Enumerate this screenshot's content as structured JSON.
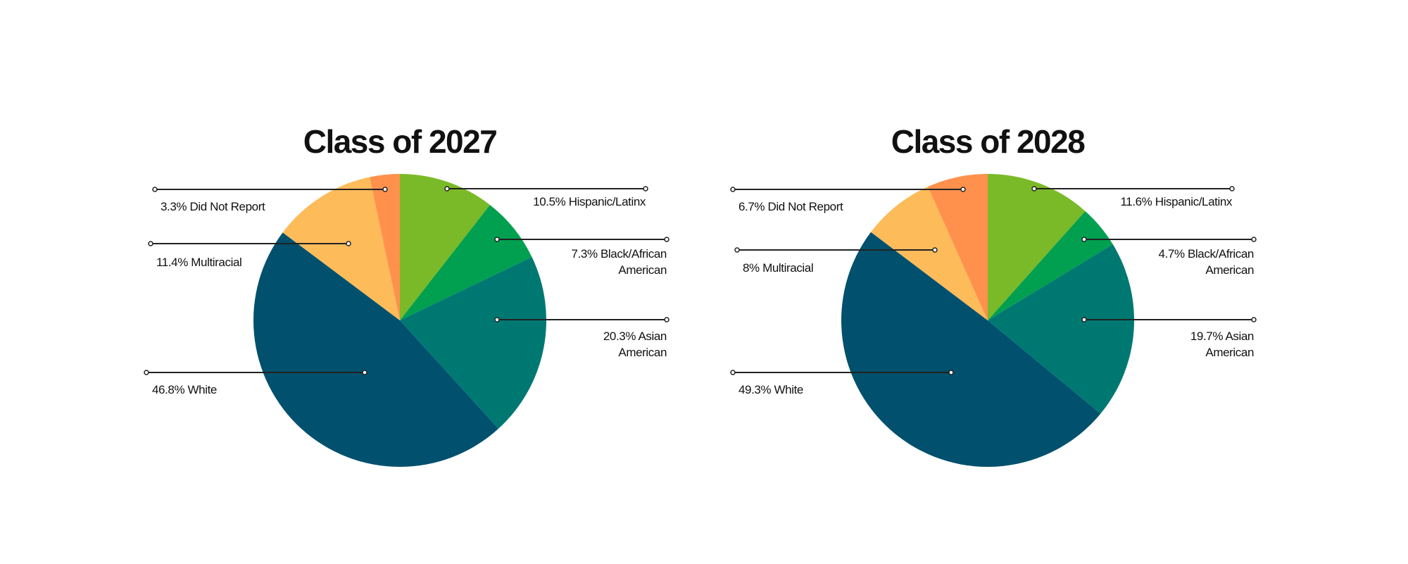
{
  "chart_data": [
    {
      "type": "pie",
      "title": "Class of 2027",
      "start": "top",
      "direction": "clockwise",
      "slices": [
        {
          "category": "Hispanic/Latinx",
          "value": 10.5,
          "label": [
            "10.5% Hispanic/Latinx"
          ],
          "color": "#7ABA28"
        },
        {
          "category": "Black/African American",
          "value": 7.3,
          "label": [
            "7.3% Black/African",
            "American"
          ],
          "color": "#00A050"
        },
        {
          "category": "Asian American",
          "value": 20.3,
          "label": [
            "20.3% Asian",
            "American"
          ],
          "color": "#007872"
        },
        {
          "category": "White",
          "value": 46.8,
          "label": [
            "46.8% White"
          ],
          "color": "#00506E"
        },
        {
          "category": "Multiracial",
          "value": 11.4,
          "label": [
            "11.4% Multiracial"
          ],
          "color": "#FDBB5A"
        },
        {
          "category": "Did Not Report",
          "value": 3.3,
          "label": [
            "3.3% Did Not Report"
          ],
          "color": "#FF914D"
        }
      ]
    },
    {
      "type": "pie",
      "title": "Class of 2028",
      "start": "top",
      "direction": "clockwise",
      "slices": [
        {
          "category": "Hispanic/Latinx",
          "value": 11.6,
          "label": [
            "11.6% Hispanic/Latinx"
          ],
          "color": "#7ABA28"
        },
        {
          "category": "Black/African American",
          "value": 4.7,
          "label": [
            "4.7% Black/African",
            "American"
          ],
          "color": "#00A050"
        },
        {
          "category": "Asian American",
          "value": 19.7,
          "label": [
            "19.7% Asian",
            "American"
          ],
          "color": "#007872"
        },
        {
          "category": "White",
          "value": 49.3,
          "label": [
            "49.3% White"
          ],
          "color": "#00506E"
        },
        {
          "category": "Multiracial",
          "value": 8,
          "label": [
            "8% Multiracial"
          ],
          "color": "#FDBB5A"
        },
        {
          "category": "Did Not Report",
          "value": 6.7,
          "label": [
            "6.7% Did Not Report"
          ],
          "color": "#FF914D"
        }
      ]
    }
  ]
}
